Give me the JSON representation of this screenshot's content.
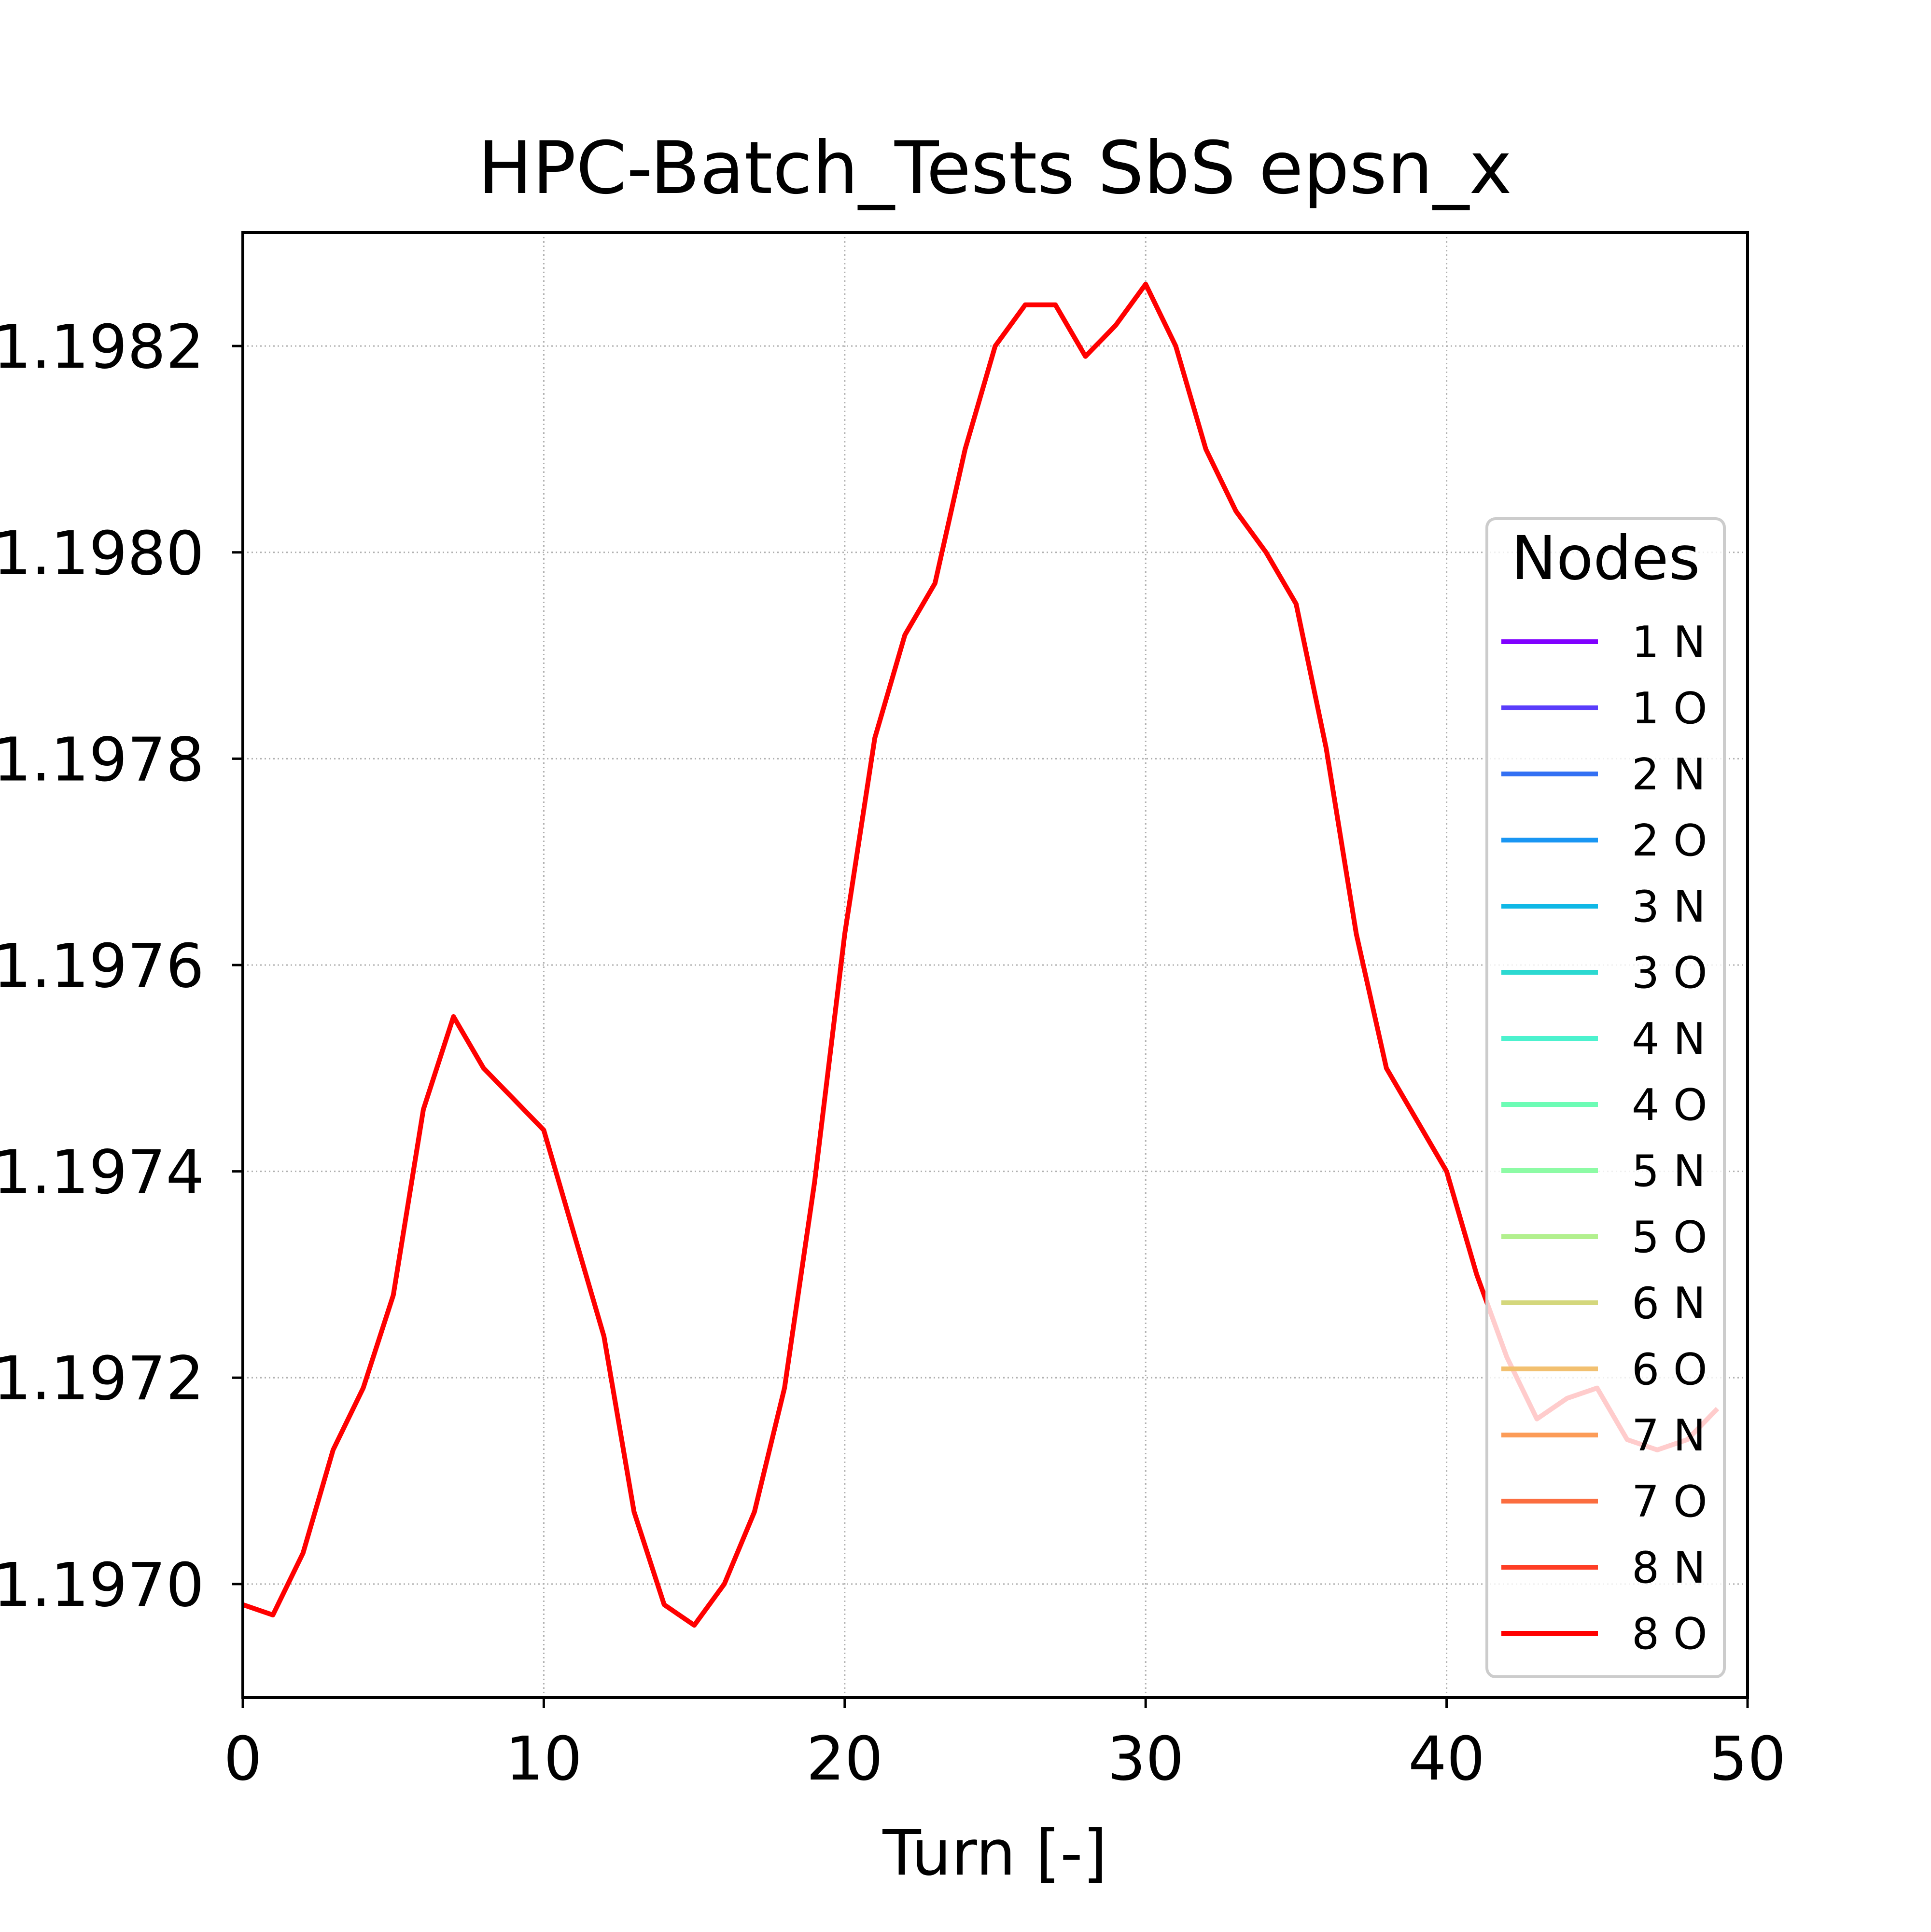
{
  "chart_data": {
    "type": "line",
    "title": "HPC-Batch_Tests SbS epsn_x",
    "xlabel": "Turn [-]",
    "ylabel": "",
    "xlim": [
      0,
      50
    ],
    "ylim": [
      1.19689,
      1.19831
    ],
    "xticks": [
      0,
      10,
      20,
      30,
      40,
      50
    ],
    "xtick_labels": [
      "0",
      "10",
      "20",
      "30",
      "40",
      "50"
    ],
    "yticks": [
      1.197,
      1.1972,
      1.1974,
      1.1976,
      1.1978,
      1.198,
      1.1982
    ],
    "ytick_labels": [
      "1.1970",
      "1.1972",
      "1.1974",
      "1.1976",
      "1.1978",
      "1.1980",
      "1.1982"
    ],
    "grid": true,
    "legend": {
      "title": "Nodes",
      "placement": "center-right",
      "entries": [
        {
          "label": "1 N",
          "color": "#8000ff"
        },
        {
          "label": "1 O",
          "color": "#5a3dfb"
        },
        {
          "label": "2 N",
          "color": "#3370f3"
        },
        {
          "label": "2 O",
          "color": "#1996f3"
        },
        {
          "label": "3 N",
          "color": "#10b8e6"
        },
        {
          "label": "3 O",
          "color": "#2cd9d1"
        },
        {
          "label": "4 N",
          "color": "#4cf2ce"
        },
        {
          "label": "4 O",
          "color": "#6cfcb5"
        },
        {
          "label": "5 N",
          "color": "#8dfba5"
        },
        {
          "label": "5 O",
          "color": "#b2f08e"
        },
        {
          "label": "6 N",
          "color": "#d4d77c"
        },
        {
          "label": "6 O",
          "color": "#f2c070"
        },
        {
          "label": "7 N",
          "color": "#fc9c58"
        },
        {
          "label": "7 O",
          "color": "#fb6d3f"
        },
        {
          "label": "8 N",
          "color": "#fe3e25"
        },
        {
          "label": "8 O",
          "color": "#ff0000"
        }
      ]
    },
    "series": [
      {
        "name": "8 O",
        "color": "#ff0000",
        "x": [
          0,
          1,
          2,
          3,
          4,
          5,
          6,
          7,
          8,
          9,
          10,
          11,
          12,
          13,
          14,
          15,
          16,
          17,
          18,
          19,
          20,
          21,
          22,
          23,
          24,
          25,
          26,
          27,
          28,
          29,
          30,
          31,
          32,
          33,
          34,
          35,
          36,
          37,
          38,
          39,
          40,
          41,
          42,
          43,
          44,
          45,
          46,
          47,
          48,
          49
        ],
        "y": [
          1.19698,
          1.19697,
          1.19703,
          1.19713,
          1.19719,
          1.19728,
          1.19746,
          1.19755,
          1.1975,
          1.19747,
          1.19744,
          1.19734,
          1.19724,
          1.19707,
          1.19698,
          1.19696,
          1.197,
          1.19707,
          1.19719,
          1.19739,
          1.19763,
          1.19782,
          1.19792,
          1.19797,
          1.1981,
          1.1982,
          1.19824,
          1.19824,
          1.19819,
          1.19822,
          1.19826,
          1.1982,
          1.1981,
          1.19804,
          1.198,
          1.19795,
          1.19781,
          1.19763,
          1.1975,
          1.19745,
          1.1974,
          1.1973,
          1.19722,
          1.19716,
          1.19718,
          1.19719,
          1.19714,
          1.19713,
          1.19714,
          1.19717
        ]
      }
    ]
  }
}
